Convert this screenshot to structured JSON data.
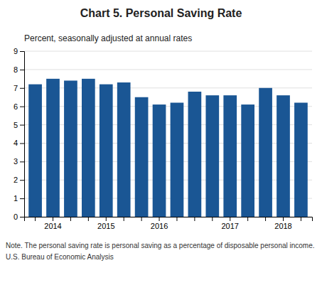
{
  "chart_data": {
    "type": "bar",
    "title": "Chart 5. Personal Saving Rate",
    "subtitle": "Percent, seasonally adjusted at annual rates",
    "annotations": [
      "Note. The personal saving rate is personal saving as a percentage of disposable personal income.",
      "U.S. Bureau of Economic Analysis"
    ],
    "categories": [
      null,
      "2014",
      null,
      null,
      "2015",
      null,
      null,
      "2016",
      null,
      null,
      null,
      "2017",
      null,
      null,
      "2018",
      null
    ],
    "values": [
      7.2,
      7.5,
      7.4,
      7.5,
      7.2,
      7.3,
      6.5,
      6.1,
      6.2,
      6.8,
      6.6,
      6.6,
      6.1,
      7.0,
      6.6,
      6.2
    ],
    "color": "#1a5694",
    "ylim": [
      0,
      9
    ],
    "yticks": [
      0,
      1,
      2,
      3,
      4,
      5,
      6,
      7,
      8,
      9
    ],
    "grid": true
  }
}
